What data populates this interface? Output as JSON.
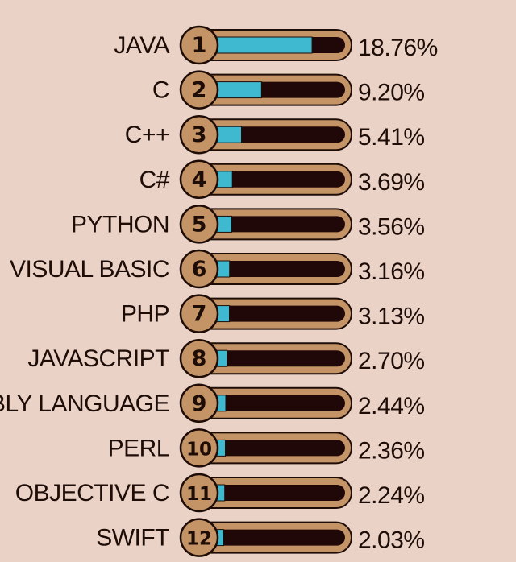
{
  "chart_data": {
    "type": "bar",
    "title": "",
    "xlabel": "",
    "ylabel": "",
    "ylim": [
      0,
      25
    ],
    "categories": [
      "JAVA",
      "C",
      "C++",
      "C#",
      "PYTHON",
      "VISUAL BASIC",
      "PHP",
      "JAVASCRIPT",
      "ASSEMBLY LANGUAGE",
      "PERL",
      "OBJECTIVE C",
      "SWIFT"
    ],
    "ranks": [
      "1",
      "2",
      "3",
      "4",
      "5",
      "6",
      "7",
      "8",
      "9",
      "10",
      "11",
      "12"
    ],
    "values": [
      18.76,
      9.2,
      5.41,
      3.69,
      3.56,
      3.16,
      3.13,
      2.7,
      2.44,
      2.36,
      2.24,
      2.03
    ],
    "value_labels": [
      "18.76%",
      "9.20%",
      "5.41%",
      "3.69%",
      "3.56%",
      "3.16%",
      "3.13%",
      "2.70%",
      "2.44%",
      "2.36%",
      "2.24%",
      "2.03%"
    ],
    "colors": {
      "background": "#ead2c6",
      "bar_outer": "#c49467",
      "bar_track": "#210808",
      "bar_fill": "#3fb9cf",
      "badge": "#c49467",
      "ink": "#1e0c07"
    }
  }
}
